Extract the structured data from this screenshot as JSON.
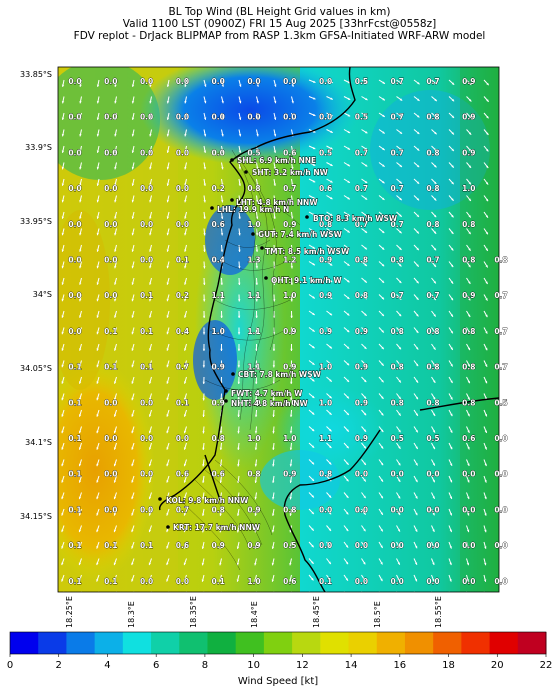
{
  "header": {
    "line1": "BL Top Wind (BL Height Grid values in km)",
    "line2": "Valid 1100 LST (0900Z) FRI 15 Aug 2025 [33hrFcst@0558z]",
    "line3": "FDV replot - DrJack BLIPMAP from RASP 1.3km GFSA-Initiated WRF-ARW model"
  },
  "map": {
    "lat_labels": [
      "33.85°S",
      "33.9°S",
      "33.95°S",
      "34°S",
      "34.05°S",
      "34.1°S",
      "34.15°S"
    ],
    "lon_labels": [
      "18.25°E",
      "18.3°E",
      "18.35°E",
      "18.4°E",
      "18.45°E",
      "18.5°E",
      "18.55°E"
    ],
    "grid_values": [
      [
        "0.0",
        "0.0",
        "0.0",
        "0.0",
        "0.0",
        "0.0",
        "0.0",
        "0.0",
        "0.5",
        "0.7",
        "0.7",
        "0.9",
        ""
      ],
      [
        "0.0",
        "0.0",
        "0.0",
        "0.0",
        "0.0",
        "0.0",
        "0.0",
        "0.0",
        "0.5",
        "0.7",
        "0.8",
        "0.9",
        ""
      ],
      [
        "0.0",
        "0.0",
        "0.0",
        "0.0",
        "0.0",
        "0.5",
        "0.6",
        "0.5",
        "0.7",
        "0.7",
        "0.8",
        "0.9",
        ""
      ],
      [
        "0.0",
        "0.0",
        "0.0",
        "0.0",
        "0.2",
        "0.8",
        "0.7",
        "0.6",
        "0.7",
        "0.7",
        "0.8",
        "1.0",
        ""
      ],
      [
        "0.0",
        "0.0",
        "0.0",
        "0.0",
        "0.6",
        "1.0",
        "0.9",
        "0.8",
        "0.7",
        "0.7",
        "0.8",
        "0.8",
        ""
      ],
      [
        "0.0",
        "0.0",
        "0.0",
        "0.1",
        "0.4",
        "1.3",
        "1.2",
        "0.9",
        "0.8",
        "0.8",
        "0.7",
        "0.8",
        "0.8"
      ],
      [
        "0.0",
        "0.0",
        "0.1",
        "0.2",
        "1.1",
        "1.1",
        "1.0",
        "0.9",
        "0.8",
        "0.7",
        "0.7",
        "0.9",
        "0.7"
      ],
      [
        "0.0",
        "0.1",
        "0.1",
        "0.4",
        "1.0",
        "1.1",
        "0.9",
        "0.9",
        "0.9",
        "0.8",
        "0.8",
        "0.8",
        "0.7"
      ],
      [
        "0.1",
        "0.1",
        "0.1",
        "0.7",
        "0.9",
        "1.1",
        "0.9",
        "1.0",
        "0.9",
        "0.8",
        "0.8",
        "0.8",
        "0.7"
      ],
      [
        "0.1",
        "0.0",
        "0.0",
        "0.1",
        "0.9",
        "1.0",
        "1.0",
        "1.0",
        "0.9",
        "0.8",
        "0.8",
        "0.8",
        "0.5"
      ],
      [
        "0.1",
        "0.0",
        "0.0",
        "0.0",
        "0.8",
        "1.0",
        "1.0",
        "1.1",
        "0.9",
        "0.5",
        "0.5",
        "0.6",
        "0.0"
      ],
      [
        "0.1",
        "0.0",
        "0.0",
        "0.6",
        "0.6",
        "0.8",
        "0.9",
        "0.8",
        "0.0",
        "0.0",
        "0.0",
        "0.0",
        "0.0"
      ],
      [
        "0.1",
        "0.0",
        "0.0",
        "0.7",
        "0.8",
        "0.9",
        "0.8",
        "0.0",
        "0.0",
        "0.0",
        "0.0",
        "0.0",
        "0.0"
      ],
      [
        "0.1",
        "0.1",
        "0.1",
        "0.6",
        "0.9",
        "0.9",
        "0.5",
        "0.0",
        "0.0",
        "0.0",
        "0.0",
        "0.0",
        "0.0"
      ],
      [
        "0.1",
        "0.1",
        "0.0",
        "0.0",
        "0.1",
        "1.0",
        "0.6",
        "0.1",
        "0.0",
        "0.0",
        "0.0",
        "0.0",
        "0.0"
      ]
    ],
    "stations": [
      {
        "label": "SHL: 6.9 km/h NNE"
      },
      {
        "label": "SHT: 3.2 km/h NW"
      },
      {
        "label": "LHT: 4.8 km/h NNW"
      },
      {
        "label": "LHL: 19.9 km/h N"
      },
      {
        "label": "BTO: 8.3 km/h WSW"
      },
      {
        "label": "GUT: 7.4 km/h WSW"
      },
      {
        "label": "TMT: 8.5 km/h WSW"
      },
      {
        "label": "OHT: 9.1 km/h W"
      },
      {
        "label": "CBT: 7.8 km/h WSW"
      },
      {
        "label": "FWT: 4.7 km/h W"
      },
      {
        "label": "NHT: 4.8 km/h NW"
      },
      {
        "label": "KOL: 9.8 km/h NNW"
      },
      {
        "label": "KRT: 17.7 km/h NNW"
      }
    ]
  },
  "colorbar": {
    "title": "Wind Speed [kt]",
    "ticks": [
      "0",
      "2",
      "4",
      "6",
      "8",
      "10",
      "12",
      "14",
      "16",
      "18",
      "20",
      "22"
    ],
    "colors": [
      "#0000ee",
      "#0a3be8",
      "#0a7be8",
      "#0cb0e8",
      "#10e0e0",
      "#10d0a8",
      "#10c070",
      "#10b040",
      "#40c020",
      "#80d010",
      "#b8d810",
      "#e0e000",
      "#ead000",
      "#f0b000",
      "#f09000",
      "#f06000",
      "#f03000",
      "#e00000",
      "#c00020"
    ]
  }
}
